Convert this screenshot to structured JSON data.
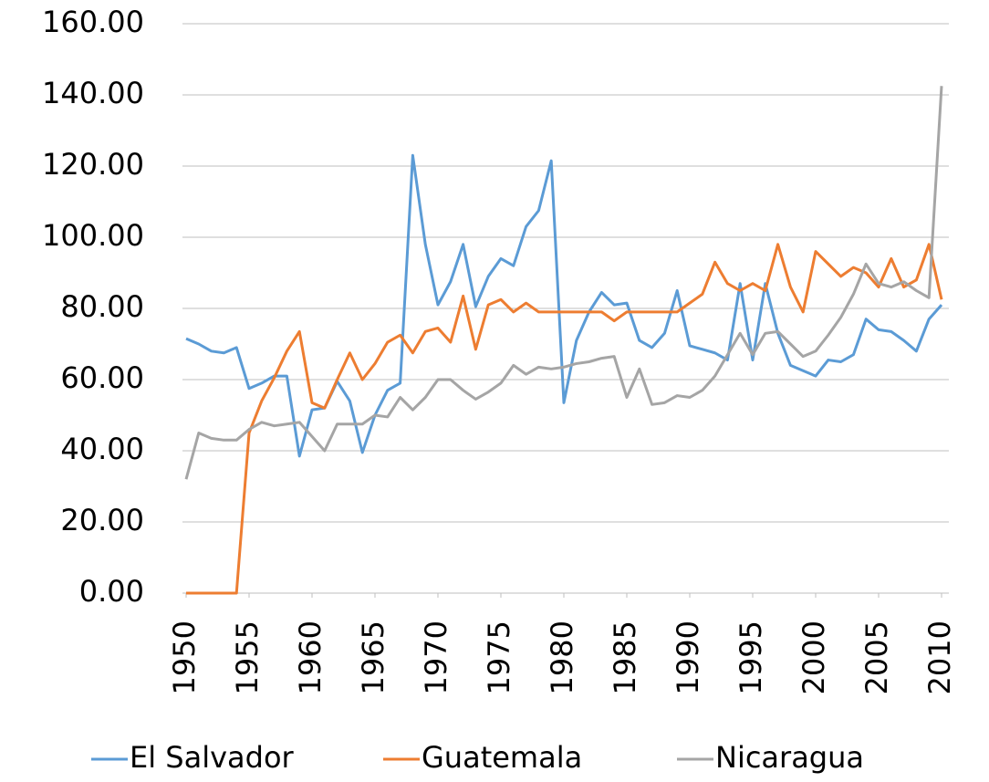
{
  "chart_data": {
    "type": "line",
    "x": [
      1950,
      1951,
      1952,
      1953,
      1954,
      1955,
      1956,
      1957,
      1958,
      1959,
      1960,
      1961,
      1962,
      1963,
      1964,
      1965,
      1966,
      1967,
      1968,
      1969,
      1970,
      1971,
      1972,
      1973,
      1974,
      1975,
      1976,
      1977,
      1978,
      1979,
      1980,
      1981,
      1982,
      1983,
      1984,
      1985,
      1986,
      1987,
      1988,
      1989,
      1990,
      1991,
      1992,
      1993,
      1994,
      1995,
      1996,
      1997,
      1998,
      1999,
      2000,
      2001,
      2002,
      2003,
      2004,
      2005,
      2006,
      2007,
      2008,
      2009,
      2010
    ],
    "series": [
      {
        "name": "El Salvador",
        "color": "#5b9bd5",
        "values": [
          71.5,
          70,
          68,
          67.5,
          69,
          57.5,
          59,
          61,
          61,
          38.5,
          51.5,
          52,
          59.5,
          54,
          39.5,
          50,
          57,
          59,
          123,
          98,
          81,
          87.5,
          98,
          80.5,
          89,
          94,
          92,
          103,
          107.5,
          121.5,
          53.5,
          71,
          79,
          84.5,
          81,
          81.5,
          71,
          69,
          73,
          85,
          69.5,
          68.5,
          67.5,
          65.5,
          87,
          65.5,
          87,
          73,
          64,
          62.5,
          61,
          65.5,
          65,
          67,
          77,
          74,
          73.5,
          71,
          68,
          77,
          81
        ]
      },
      {
        "name": "Guatemala",
        "color": "#ed7d31",
        "values": [
          0,
          0,
          0,
          0,
          0,
          45,
          54,
          60.5,
          68,
          73.5,
          53.5,
          52,
          60,
          67.5,
          60,
          64.5,
          70.5,
          72.5,
          67.5,
          73.5,
          74.5,
          70.5,
          83.5,
          68.5,
          81,
          82.5,
          79,
          81.5,
          79,
          79,
          79,
          79,
          79,
          79,
          76.5,
          79,
          79,
          79,
          79,
          79,
          81.5,
          84,
          93,
          87,
          85,
          87,
          85,
          98,
          86,
          79,
          96,
          92.5,
          89,
          91.5,
          90,
          86,
          94,
          86,
          88,
          98,
          82.5
        ]
      },
      {
        "name": "Nicaragua",
        "color": "#a5a5a5",
        "values": [
          32,
          45,
          43.5,
          43,
          43,
          46,
          48,
          47,
          47.5,
          48,
          44,
          40,
          47.5,
          47.5,
          47.5,
          50,
          49.5,
          55,
          51.5,
          55,
          60,
          60,
          57,
          54.5,
          56.5,
          59,
          64,
          61.5,
          63.5,
          63,
          63.5,
          64.5,
          65,
          66,
          66.5,
          55,
          63,
          53,
          53.5,
          55.5,
          55,
          57,
          61,
          67,
          73,
          67,
          73,
          73.5,
          70,
          66.5,
          68,
          72.5,
          77.5,
          84,
          92.5,
          87,
          86,
          87.5,
          85,
          83,
          142.5
        ]
      }
    ],
    "xlim": [
      1950,
      2010
    ],
    "xticks": [
      1950,
      1955,
      1960,
      1965,
      1970,
      1975,
      1980,
      1985,
      1990,
      1995,
      2000,
      2005,
      2010
    ],
    "ylim": [
      0,
      160
    ],
    "yticks": [
      {
        "value": 0,
        "label": "0.00"
      },
      {
        "value": 20,
        "label": "20.00"
      },
      {
        "value": 40,
        "label": "40.00"
      },
      {
        "value": 60,
        "label": "60.00"
      },
      {
        "value": 80,
        "label": "80.00"
      },
      {
        "value": 100,
        "label": "100.00"
      },
      {
        "value": 120,
        "label": "120.00"
      },
      {
        "value": 140,
        "label": "140.00"
      },
      {
        "value": 160,
        "label": "160.00"
      }
    ],
    "grid": true,
    "legend": "bottom"
  }
}
